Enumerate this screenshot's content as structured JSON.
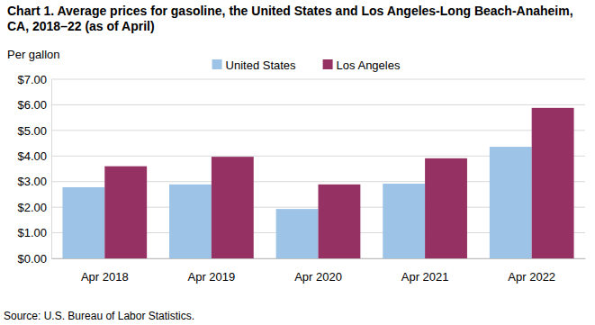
{
  "chart_data": {
    "type": "bar",
    "title": "Chart 1. Average prices for gasoline, the United States and Los Angeles-Long Beach-Anaheim, CA, 2018–22 (as of April)",
    "ylabel": "Per gallon",
    "source": "Source: U.S. Bureau of Labor Statistics.",
    "categories": [
      "Apr 2018",
      "Apr 2019",
      "Apr 2020",
      "Apr 2021",
      "Apr 2022"
    ],
    "series": [
      {
        "name": "United States",
        "color": "#9dc3e6",
        "values": [
          2.78,
          2.89,
          1.93,
          2.92,
          4.36
        ]
      },
      {
        "name": "Los Angeles",
        "color": "#953163",
        "values": [
          3.6,
          3.97,
          2.89,
          3.91,
          5.88
        ]
      }
    ],
    "ylim": [
      0,
      7
    ],
    "yticks": [
      {
        "value": 0,
        "label": "$0.00"
      },
      {
        "value": 1,
        "label": "$1.00"
      },
      {
        "value": 2,
        "label": "$2.00"
      },
      {
        "value": 3,
        "label": "$3.00"
      },
      {
        "value": 4,
        "label": "$4.00"
      },
      {
        "value": 5,
        "label": "$5.00"
      },
      {
        "value": 6,
        "label": "$6.00"
      },
      {
        "value": 7,
        "label": "$7.00"
      }
    ],
    "grid": true,
    "legend": "top"
  }
}
